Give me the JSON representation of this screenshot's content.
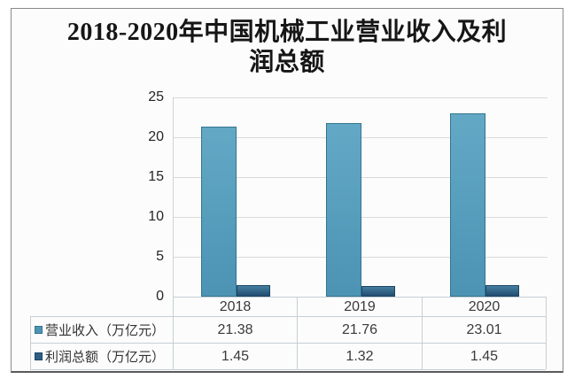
{
  "title": {
    "line1": "2018-2020年中国机械工业营业收入及利",
    "line2": "润总额",
    "full": "2018-2020年中国机械工业营业收入及利润总额"
  },
  "chart_data": {
    "type": "bar",
    "title": "2018-2020年中国机械工业营业收入及利润总额",
    "categories": [
      "2018",
      "2019",
      "2020"
    ],
    "series": [
      {
        "key": "revenue",
        "name": "营业收入（万亿元）",
        "values": [
          21.38,
          21.76,
          23.01
        ],
        "color_top": "#63a9c6",
        "color_bottom": "#4c93b4",
        "border_color": "#34748f"
      },
      {
        "key": "profit",
        "name": "利润总额（万亿元）",
        "values": [
          1.45,
          1.32,
          1.45
        ],
        "color_top": "#457e9f",
        "color_bottom": "#224e70",
        "border_color": "#1c4565",
        "swatch_color": "#2d5f84"
      }
    ],
    "xlabel": "",
    "ylabel": "",
    "ylim": [
      0,
      25
    ],
    "yticks": [
      0,
      5,
      10,
      15,
      20,
      25
    ],
    "grid": true,
    "legend_position": "bottom-table",
    "data_table_shown": true
  },
  "colors": {
    "frame_border": "#8a8a8a",
    "grid": "#dadada",
    "table_border": "#c6cfd5",
    "text": "#3a3a3a",
    "revenue_swatch": "#5b9ec0",
    "profit_swatch": "#2d5f84"
  }
}
